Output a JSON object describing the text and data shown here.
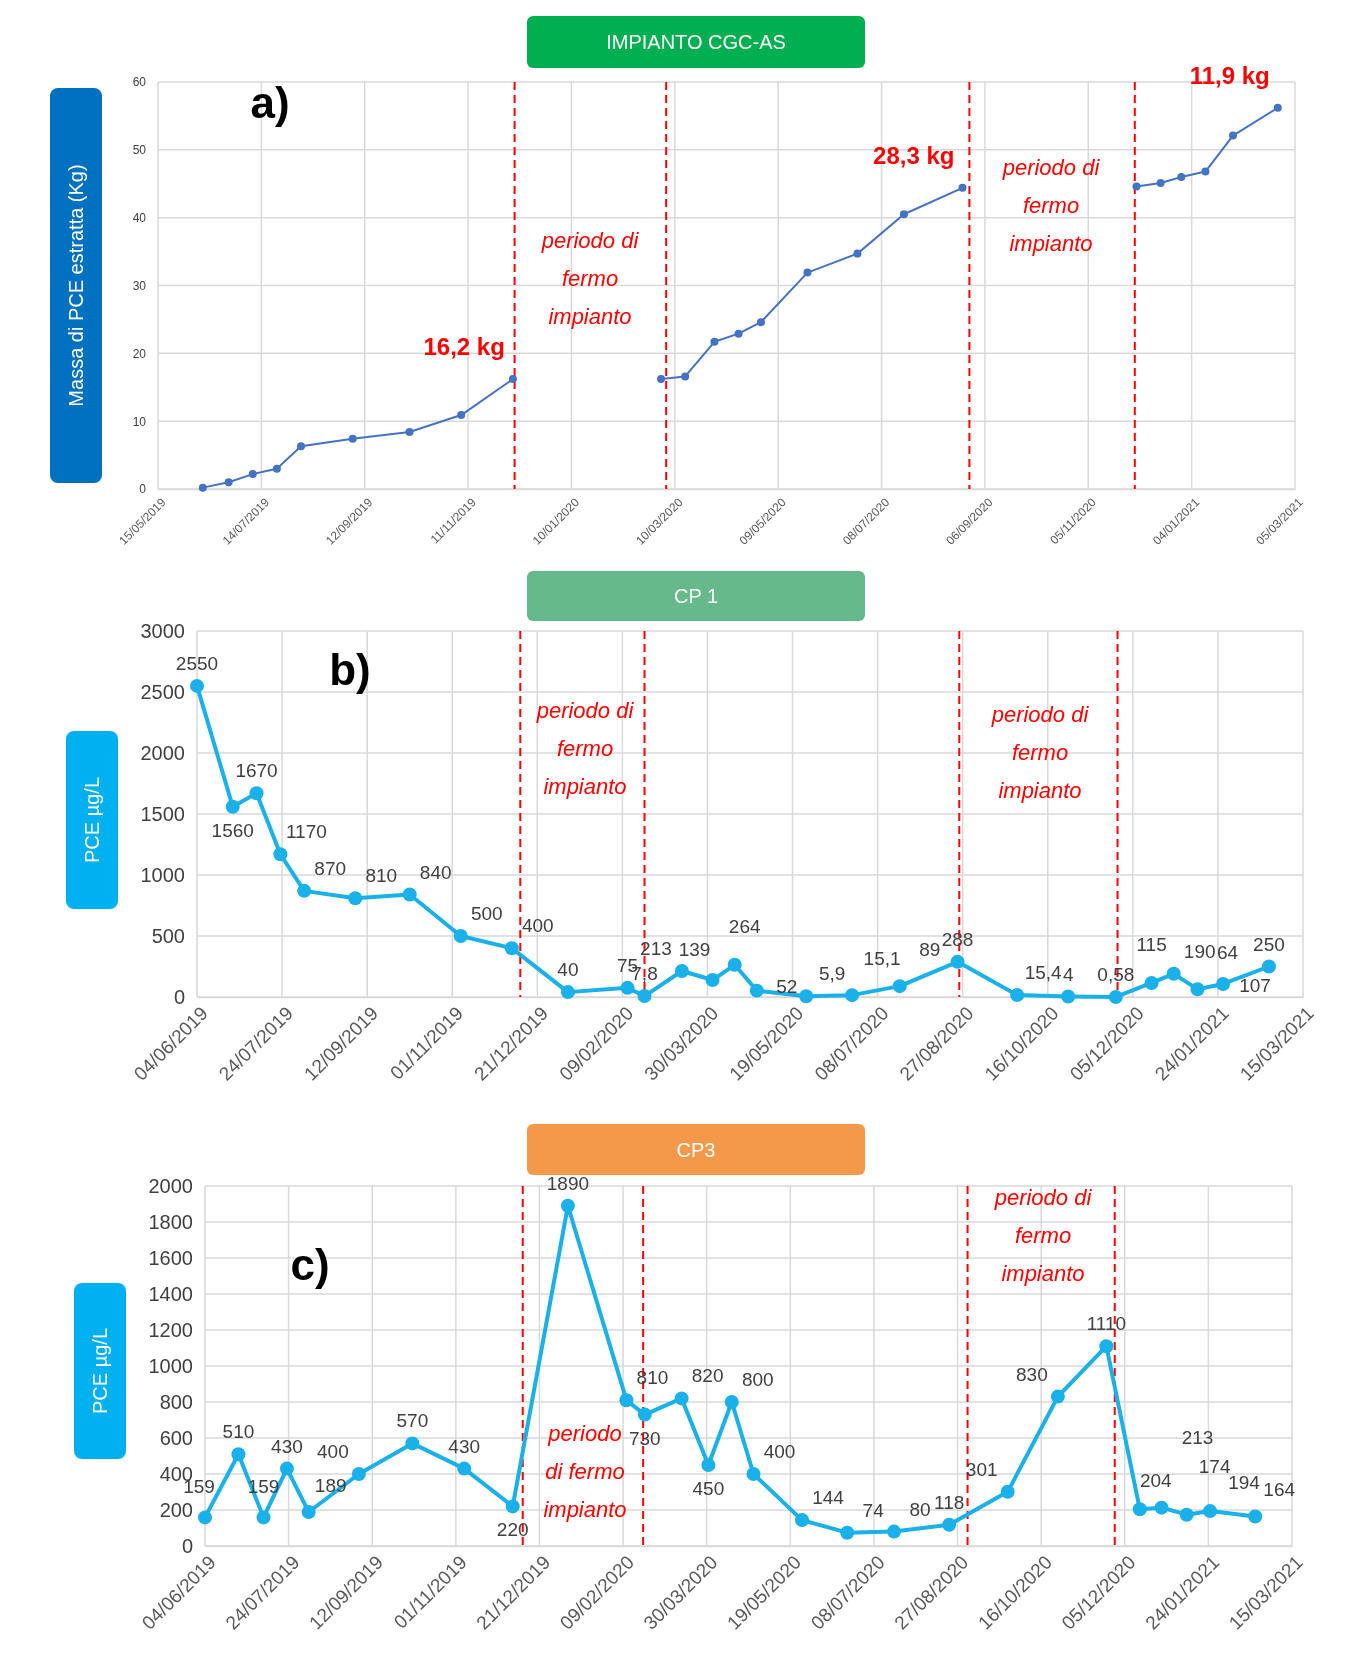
{
  "chart_data": [
    {
      "type": "line",
      "title": "IMPIANTO CGC-AS",
      "ylabel": "Massa di PCE estratta (Kg)",
      "xlim": [
        "2019-05-15",
        "2021-03-05"
      ],
      "xticks": [
        {
          "value": "2019-05-15",
          "label": "15/05/2019"
        },
        {
          "value": "2019-07-14",
          "label": "14/07/2019"
        },
        {
          "value": "2019-09-12",
          "label": "12/09/2019"
        },
        {
          "value": "2019-11-11",
          "label": "11/11/2019"
        },
        {
          "value": "2020-01-10",
          "label": "10/01/2020"
        },
        {
          "value": "2020-03-10",
          "label": "10/03/2020"
        },
        {
          "value": "2020-05-09",
          "label": "09/05/2020"
        },
        {
          "value": "2020-07-08",
          "label": "08/07/2020"
        },
        {
          "value": "2020-09-06",
          "label": "06/09/2020"
        },
        {
          "value": "2020-11-05",
          "label": "05/11/2020"
        },
        {
          "value": "2021-01-04",
          "label": "04/01/2021"
        },
        {
          "value": "2021-03-05",
          "label": "05/03/2021"
        }
      ],
      "ylim": [
        0,
        60
      ],
      "yticks": [
        0,
        10,
        20,
        30,
        40,
        50,
        60
      ],
      "grid": true,
      "marker": "circle",
      "series": [
        {
          "color": "#4472c4",
          "x": [
            "2019-06-10",
            "2019-06-25",
            "2019-07-09",
            "2019-07-23",
            "2019-08-06",
            "2019-09-05",
            "2019-10-08",
            "2019-11-07",
            "2019-12-07"
          ],
          "values": [
            0.2,
            1.0,
            2.2,
            3.0,
            6.3,
            7.4,
            8.4,
            10.9,
            16.2
          ]
        },
        {
          "color": "#4472c4",
          "x": [
            "2020-03-02",
            "2020-03-16",
            "2020-04-02",
            "2020-04-16",
            "2020-04-29",
            "2020-05-26",
            "2020-06-24",
            "2020-07-21",
            "2020-08-24"
          ],
          "values": [
            16.2,
            16.6,
            21.7,
            22.9,
            24.6,
            31.9,
            34.7,
            40.5,
            44.4
          ]
        },
        {
          "color": "#4472c4",
          "x": [
            "2020-12-03",
            "2020-12-17",
            "2020-12-29",
            "2021-01-12",
            "2021-01-28",
            "2021-02-23"
          ],
          "values": [
            44.6,
            45.1,
            46.0,
            46.8,
            52.1,
            56.2
          ]
        }
      ],
      "ref_lines": [
        {
          "axis": "x",
          "value": "2019-12-08",
          "color": "#ff0000",
          "line_style": "dashed"
        },
        {
          "axis": "x",
          "value": "2020-03-05",
          "color": "#ff0000",
          "line_style": "dashed"
        },
        {
          "axis": "x",
          "value": "2020-08-28",
          "color": "#ff0000",
          "line_style": "dashed"
        },
        {
          "axis": "x",
          "value": "2020-12-02",
          "color": "#ff0000",
          "line_style": "dashed"
        }
      ],
      "annotations": [
        "a)",
        "periodo di\nfermo\nimpianto",
        "periodo di\nfermo\nimpianto",
        {
          "text": "16,2 kg",
          "x": "2019-12-07",
          "y": 16.2
        },
        {
          "text": "28,3 kg",
          "x": "2020-08-24",
          "y": 44.4
        },
        {
          "text": "11,9 kg",
          "x": "2021-02-23",
          "y": 56.2
        }
      ]
    },
    {
      "type": "line",
      "title": "CP 1",
      "ylabel": "PCE µg/L",
      "xlim": [
        "2019-06-04",
        "2021-03-15"
      ],
      "xticks": [
        {
          "value": "2019-06-04",
          "label": "04/06/2019"
        },
        {
          "value": "2019-07-24",
          "label": "24/07/2019"
        },
        {
          "value": "2019-09-12",
          "label": "12/09/2019"
        },
        {
          "value": "2019-11-01",
          "label": "01/11/2019"
        },
        {
          "value": "2019-12-21",
          "label": "21/12/2019"
        },
        {
          "value": "2020-02-09",
          "label": "09/02/2020"
        },
        {
          "value": "2020-03-30",
          "label": "30/03/2020"
        },
        {
          "value": "2020-05-19",
          "label": "19/05/2020"
        },
        {
          "value": "2020-07-08",
          "label": "08/07/2020"
        },
        {
          "value": "2020-08-27",
          "label": "27/08/2020"
        },
        {
          "value": "2020-10-16",
          "label": "16/10/2020"
        },
        {
          "value": "2020-12-05",
          "label": "05/12/2020"
        },
        {
          "value": "2021-01-24",
          "label": "24/01/2021"
        },
        {
          "value": "2021-03-15",
          "label": "15/03/2021"
        }
      ],
      "ylim": [
        0,
        3000
      ],
      "yticks": [
        0,
        500,
        1000,
        1500,
        2000,
        2500,
        3000
      ],
      "grid": true,
      "marker": "circle",
      "series": [
        {
          "color": "#1ab0ea",
          "x": [
            "2019-06-04",
            "2019-06-25",
            "2019-07-09",
            "2019-07-23",
            "2019-08-06",
            "2019-09-05",
            "2019-10-07",
            "2019-11-06",
            "2019-12-06",
            "2020-01-08",
            "2020-02-12",
            "2020-02-22",
            "2020-03-15",
            "2020-04-02",
            "2020-04-15",
            "2020-04-28",
            "2020-05-27",
            "2020-06-23",
            "2020-07-21",
            "2020-08-24",
            "2020-09-28",
            "2020-10-28",
            "2020-11-25",
            "2020-12-16",
            "2020-12-29",
            "2021-01-12",
            "2021-01-27",
            "2021-02-23"
          ],
          "values": [
            2550,
            1560,
            1670,
            1170,
            870,
            810,
            840,
            500,
            400,
            40,
            75,
            7.8,
            213,
            139,
            264,
            52,
            5.9,
            15.1,
            89,
            288,
            15.4,
            4,
            0.58,
            115,
            190,
            64,
            107,
            250
          ],
          "value_labels": [
            "2550",
            "1560",
            "1670",
            "1170",
            "870",
            "810",
            "840",
            "500",
            "400",
            "40",
            "75",
            "7,8",
            "213",
            "139",
            "264",
            "52",
            "5,9",
            "15,1",
            "89",
            "288",
            "15,4",
            "4",
            "0,58",
            "115",
            "190",
            "64",
            "107",
            "250"
          ]
        }
      ],
      "ref_lines": [
        {
          "axis": "x",
          "value": "2019-12-11",
          "color": "#ff0000",
          "line_style": "dashed"
        },
        {
          "axis": "x",
          "value": "2020-02-22",
          "color": "#ff0000",
          "line_style": "dashed"
        },
        {
          "axis": "x",
          "value": "2020-08-25",
          "color": "#ff0000",
          "line_style": "dashed"
        },
        {
          "axis": "x",
          "value": "2020-11-26",
          "color": "#ff0000",
          "line_style": "dashed"
        }
      ],
      "annotations": [
        "b)",
        "periodo di\nfermo\nimpianto",
        "periodo di\nfermo\nimpianto"
      ]
    },
    {
      "type": "line",
      "title": "CP3",
      "ylabel": "PCE µg/L",
      "xlim": [
        "2019-06-04",
        "2021-03-15"
      ],
      "xticks": [
        {
          "value": "2019-06-04",
          "label": "04/06/2019"
        },
        {
          "value": "2019-07-24",
          "label": "24/07/2019"
        },
        {
          "value": "2019-09-12",
          "label": "12/09/2019"
        },
        {
          "value": "2019-11-01",
          "label": "01/11/2019"
        },
        {
          "value": "2019-12-21",
          "label": "21/12/2019"
        },
        {
          "value": "2020-02-09",
          "label": "09/02/2020"
        },
        {
          "value": "2020-03-30",
          "label": "30/03/2020"
        },
        {
          "value": "2020-05-19",
          "label": "19/05/2020"
        },
        {
          "value": "2020-07-08",
          "label": "08/07/2020"
        },
        {
          "value": "2020-08-27",
          "label": "27/08/2020"
        },
        {
          "value": "2020-10-16",
          "label": "16/10/2020"
        },
        {
          "value": "2020-12-05",
          "label": "05/12/2020"
        },
        {
          "value": "2021-01-24",
          "label": "24/01/2021"
        },
        {
          "value": "2021-03-15",
          "label": "15/03/2021"
        }
      ],
      "ylim": [
        0,
        2000
      ],
      "yticks": [
        0,
        200,
        400,
        600,
        800,
        1000,
        1200,
        1400,
        1600,
        1800,
        2000
      ],
      "grid": true,
      "marker": "circle",
      "series": [
        {
          "color": "#1ab0ea",
          "x": [
            "2019-06-04",
            "2019-06-24",
            "2019-07-09",
            "2019-07-23",
            "2019-08-05",
            "2019-09-04",
            "2019-10-06",
            "2019-11-06",
            "2019-12-05",
            "2020-01-07",
            "2020-02-11",
            "2020-02-22",
            "2020-03-15",
            "2020-03-31",
            "2020-04-14",
            "2020-04-27",
            "2020-05-26",
            "2020-06-22",
            "2020-07-20",
            "2020-08-22",
            "2020-09-26",
            "2020-10-26",
            "2020-11-24",
            "2020-12-14",
            "2020-12-27",
            "2021-01-11",
            "2021-01-25",
            "2021-02-21"
          ],
          "values": [
            159,
            510,
            159,
            430,
            189,
            400,
            570,
            430,
            220,
            1890,
            810,
            730,
            820,
            450,
            800,
            400,
            144,
            74,
            80,
            118,
            301,
            830,
            1110,
            204,
            213,
            174,
            194,
            164
          ],
          "data_labels": true
        }
      ],
      "ref_lines": [
        {
          "axis": "x",
          "value": "2019-12-11",
          "color": "#ff0000",
          "line_style": "dashed"
        },
        {
          "axis": "x",
          "value": "2020-02-21",
          "color": "#ff0000",
          "line_style": "dashed"
        },
        {
          "axis": "x",
          "value": "2020-09-02",
          "color": "#ff0000",
          "line_style": "dashed"
        },
        {
          "axis": "x",
          "value": "2020-11-29",
          "color": "#ff0000",
          "line_style": "dashed"
        }
      ],
      "annotations": [
        "c)",
        "periodo\ndi fermo\nimpianto",
        "periodo di\nfermo\nimpianto"
      ]
    }
  ]
}
